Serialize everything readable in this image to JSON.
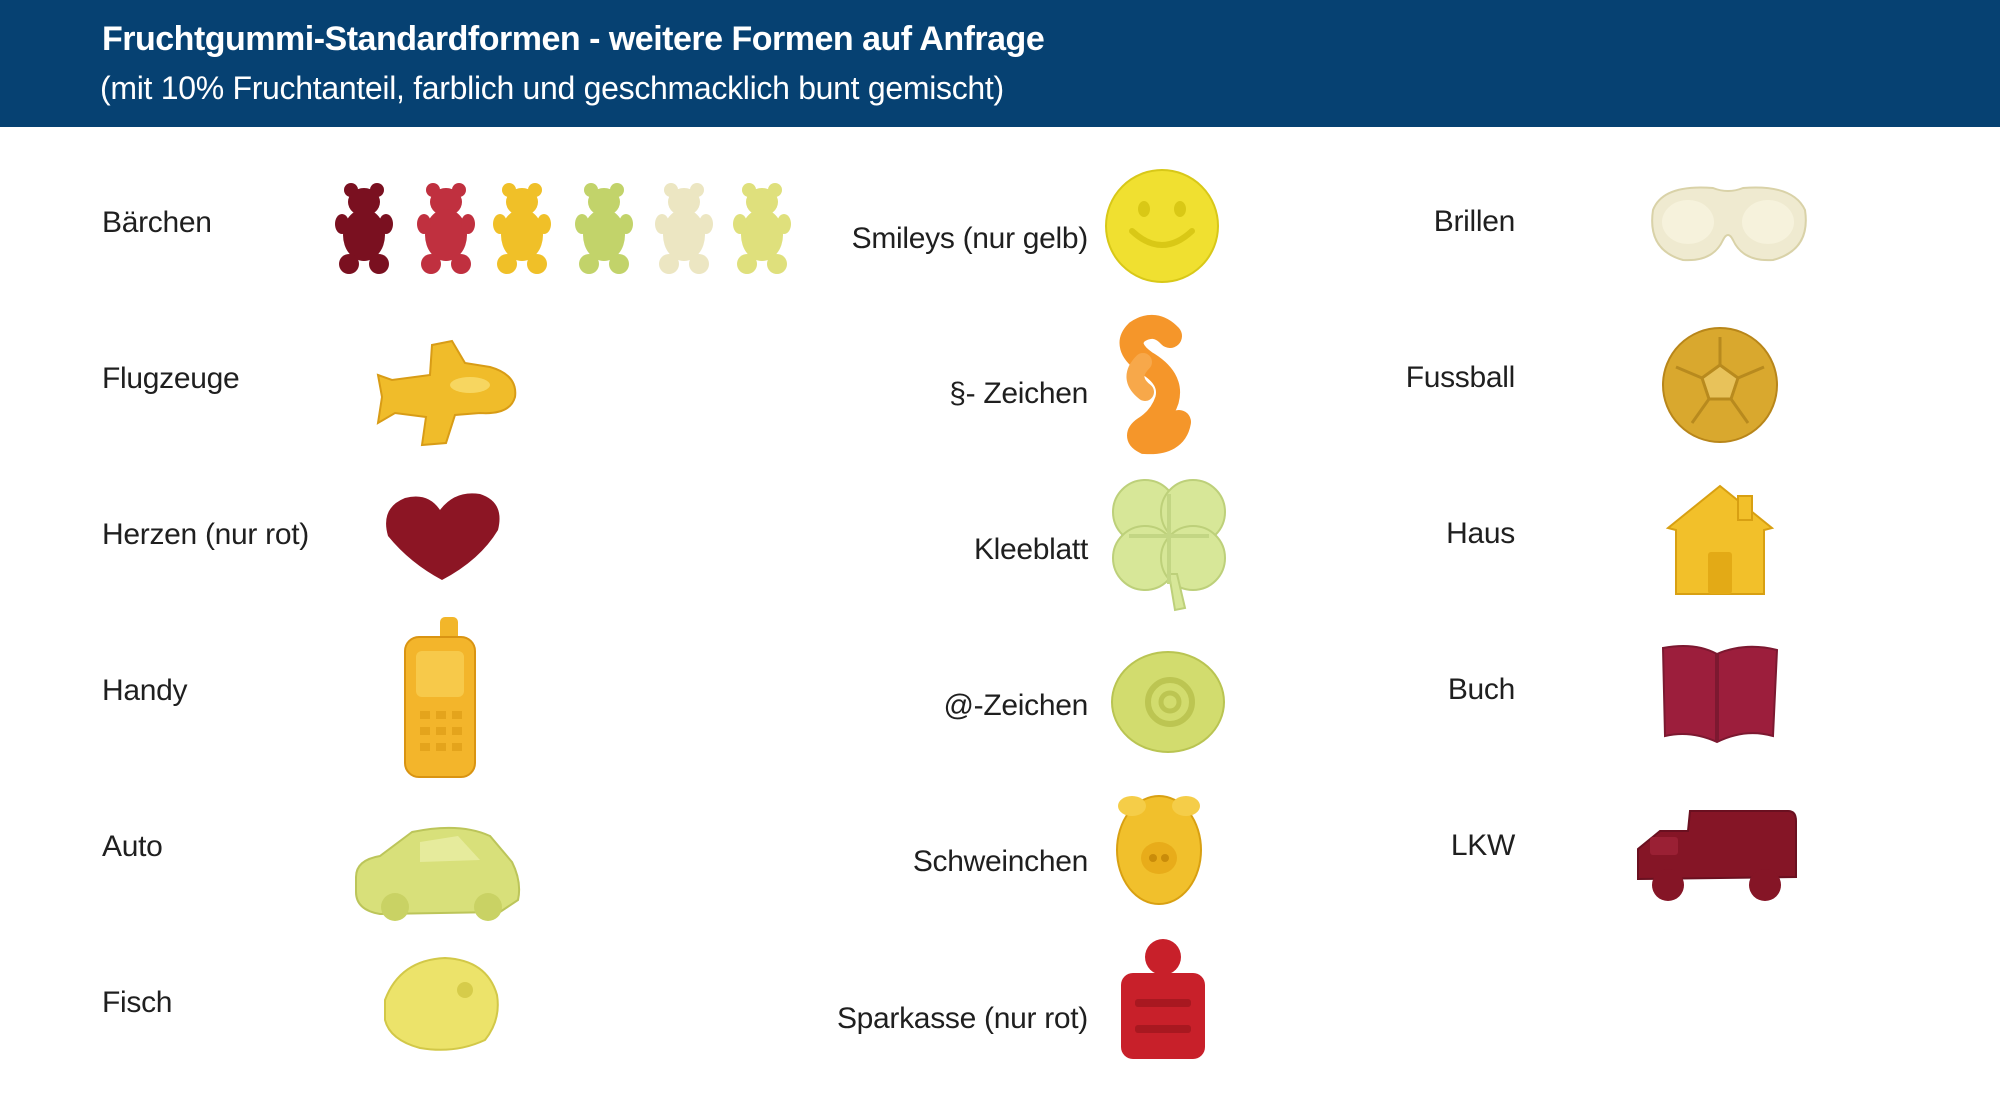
{
  "header": {
    "title": "Fruchtgummi-Standardformen - weitere Formen auf Anfrage",
    "subtitle": "(mit 10% Fruchtanteil, farblich und geschmacklich bunt gemischt)"
  },
  "shapes": {
    "col1": [
      "Bärchen",
      "Flugzeuge",
      "Herzen (nur rot)",
      "Handy",
      "Auto",
      "Fisch"
    ],
    "col2": [
      "Smileys (nur gelb)",
      "§- Zeichen",
      "Kleeblatt",
      "@-Zeichen",
      "Schweinchen",
      "Sparkasse (nur rot)"
    ],
    "col3": [
      "Brillen",
      "Fussball",
      "Haus",
      "Buch",
      "LKW"
    ]
  },
  "gummy_images": {
    "col1": [
      "gummy-bears-image",
      "airplane-gummy-image",
      "heart-gummy-image",
      "phone-gummy-image",
      "car-gummy-image",
      "fish-gummy-image"
    ],
    "col2": [
      "smiley-gummy-image",
      "paragraph-gummy-image",
      "cloverleaf-gummy-image",
      "at-sign-gummy-image",
      "piglet-gummy-image",
      "sparkasse-gummy-image"
    ],
    "col3": [
      "glasses-gummy-image",
      "football-gummy-image",
      "house-gummy-image",
      "book-gummy-image",
      "truck-gummy-image"
    ]
  },
  "colors": {
    "header_bg": "#064172",
    "gummy_dark_red": "#7a1020",
    "gummy_red": "#b8202f",
    "gummy_yellow": "#f0c020",
    "gummy_green": "#c9d870",
    "gummy_clear": "#ece8c8",
    "gummy_orange": "#f59a2a"
  }
}
